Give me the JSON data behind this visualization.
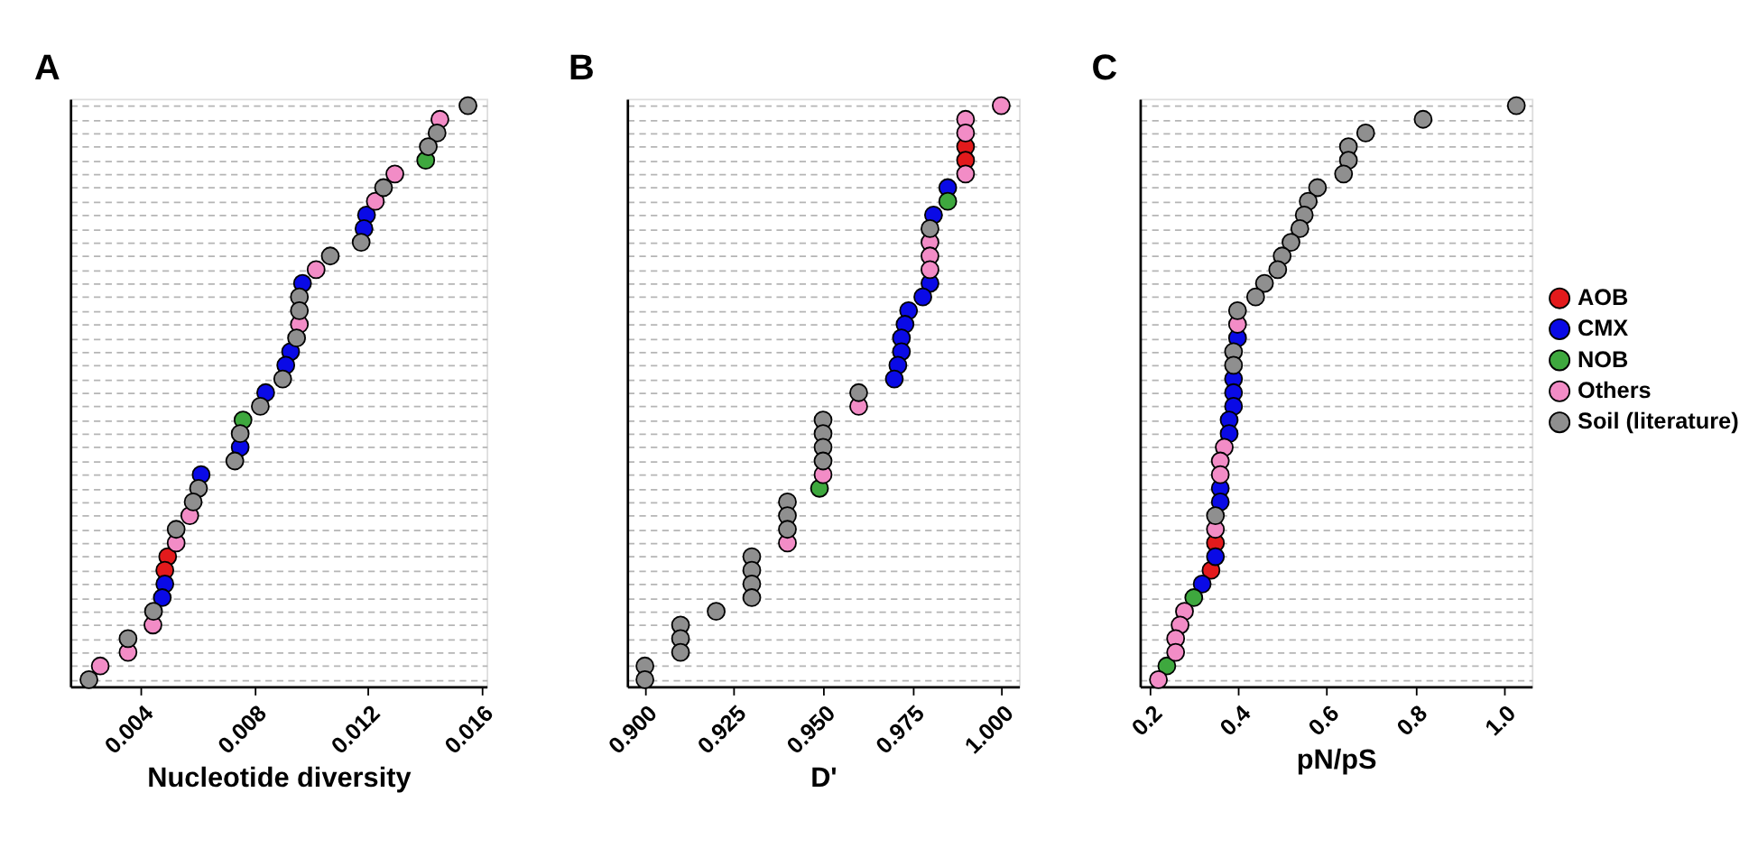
{
  "chart_data": [
    {
      "type": "scatter",
      "orientation": "horizontal",
      "title": "A",
      "xlabel": "Nucleotide diversity",
      "xlim": [
        0.0015,
        0.0162
      ],
      "xticks": [
        0.004,
        0.008,
        0.012,
        0.016
      ],
      "grid": "y",
      "tick_labels": "x",
      "marker": "circle",
      "legend": false,
      "categories": [
        null,
        null,
        null,
        null,
        null,
        null,
        null,
        null,
        null,
        null,
        null,
        null,
        null,
        null,
        null,
        null,
        null,
        null,
        null,
        null,
        null,
        null,
        null,
        null,
        null,
        null,
        null,
        null,
        null,
        null,
        null,
        null,
        null,
        null,
        null,
        null,
        null,
        null,
        null,
        null,
        null,
        null,
        null
      ],
      "series": [
        {
          "color": "#e31a1c",
          "values": [
            null,
            null,
            null,
            null,
            null,
            null,
            null,
            null,
            null,
            null,
            null,
            null,
            null,
            null,
            null,
            null,
            null,
            null,
            null,
            null,
            null,
            null,
            null,
            null,
            null,
            null,
            null,
            null,
            null,
            null,
            null,
            null,
            null,
            0.00494,
            0.00484,
            null,
            null,
            null,
            null,
            null,
            null,
            null,
            null
          ]
        },
        {
          "color": "#0a0ae6",
          "values": [
            null,
            null,
            null,
            null,
            null,
            null,
            null,
            null,
            0.01196,
            0.01187,
            null,
            null,
            null,
            0.0097,
            null,
            null,
            null,
            null,
            0.00928,
            0.00911,
            null,
            0.0084,
            null,
            null,
            null,
            0.0075,
            null,
            0.00612,
            null,
            null,
            null,
            null,
            null,
            null,
            null,
            0.00484,
            0.00475,
            null,
            null,
            null,
            null,
            null,
            null
          ]
        },
        {
          "color": "#3ea83e",
          "values": [
            null,
            null,
            null,
            null,
            0.01405,
            null,
            null,
            null,
            null,
            null,
            null,
            null,
            null,
            null,
            null,
            null,
            null,
            null,
            null,
            null,
            null,
            null,
            null,
            0.0076,
            null,
            null,
            null,
            null,
            null,
            null,
            null,
            null,
            null,
            null,
            null,
            null,
            null,
            null,
            null,
            null,
            null,
            null,
            null
          ]
        },
        {
          "color": "#f28cc6",
          "values": [
            null,
            0.01455,
            null,
            null,
            null,
            0.01296,
            null,
            0.01227,
            null,
            null,
            null,
            null,
            0.01018,
            null,
            null,
            null,
            0.00959,
            null,
            null,
            null,
            null,
            null,
            null,
            null,
            null,
            null,
            null,
            null,
            null,
            null,
            0.00572,
            null,
            0.00524,
            null,
            null,
            null,
            null,
            null,
            0.00442,
            null,
            0.00354,
            0.00256,
            null
          ]
        },
        {
          "color": "#8f8f8f",
          "values": [
            0.01554,
            null,
            0.01445,
            0.01414,
            null,
            null,
            0.01256,
            null,
            null,
            null,
            0.01177,
            0.01068,
            null,
            null,
            0.00959,
            0.00959,
            null,
            0.00949,
            null,
            null,
            0.009,
            null,
            0.00821,
            null,
            0.0075,
            null,
            0.00731,
            null,
            0.00603,
            0.00584,
            null,
            0.00524,
            null,
            null,
            null,
            null,
            null,
            0.00444,
            null,
            0.00354,
            null,
            null,
            0.00216
          ]
        }
      ]
    },
    {
      "type": "scatter",
      "orientation": "horizontal",
      "title": "B",
      "xlabel": "D'",
      "xlim": [
        0.895,
        1.005
      ],
      "xticks": [
        {
          "value": 0.9,
          "label": "0.900"
        },
        0.925,
        {
          "value": 0.95,
          "label": "0.950"
        },
        0.975,
        {
          "value": 1.0,
          "label": "1.000"
        }
      ],
      "grid": "y",
      "tick_labels": "x",
      "marker": "circle",
      "legend": false,
      "categories": [
        null,
        null,
        null,
        null,
        null,
        null,
        null,
        null,
        null,
        null,
        null,
        null,
        null,
        null,
        null,
        null,
        null,
        null,
        null,
        null,
        null,
        null,
        null,
        null,
        null,
        null,
        null,
        null,
        null,
        null,
        null,
        null,
        null,
        null,
        null,
        null,
        null,
        null,
        null,
        null,
        null,
        null,
        null
      ],
      "series": [
        {
          "color": "#e31a1c",
          "values": [
            null,
            null,
            null,
            0.99,
            0.99,
            null,
            null,
            null,
            null,
            null,
            null,
            null,
            null,
            null,
            null,
            null,
            null,
            null,
            null,
            null,
            null,
            null,
            null,
            null,
            null,
            null,
            null,
            null,
            null,
            null,
            null,
            null,
            null,
            null,
            null,
            null,
            null,
            null,
            null,
            null,
            null,
            null,
            null
          ]
        },
        {
          "color": "#0a0ae6",
          "values": [
            null,
            null,
            null,
            null,
            null,
            null,
            0.985,
            null,
            0.981,
            null,
            null,
            null,
            null,
            0.98,
            0.978,
            0.974,
            0.973,
            0.972,
            0.972,
            0.971,
            0.97,
            null,
            null,
            null,
            null,
            null,
            null,
            null,
            null,
            null,
            null,
            null,
            null,
            null,
            null,
            null,
            null,
            null,
            null,
            null,
            null,
            null,
            null
          ]
        },
        {
          "color": "#3ea83e",
          "values": [
            null,
            null,
            null,
            null,
            null,
            null,
            null,
            0.985,
            null,
            null,
            null,
            null,
            null,
            null,
            null,
            null,
            null,
            null,
            null,
            null,
            null,
            null,
            null,
            null,
            null,
            null,
            null,
            null,
            0.949,
            null,
            null,
            null,
            null,
            null,
            null,
            null,
            null,
            null,
            null,
            null,
            null,
            null,
            null
          ]
        },
        {
          "color": "#f28cc6",
          "values": [
            1.0,
            0.99,
            0.99,
            null,
            null,
            0.99,
            null,
            null,
            null,
            null,
            0.98,
            0.98,
            0.98,
            null,
            null,
            null,
            null,
            null,
            null,
            null,
            null,
            null,
            0.96,
            null,
            null,
            null,
            null,
            0.95,
            null,
            null,
            null,
            null,
            0.94,
            null,
            null,
            null,
            null,
            null,
            null,
            null,
            null,
            null,
            null
          ]
        },
        {
          "color": "#8f8f8f",
          "values": [
            null,
            null,
            null,
            null,
            null,
            null,
            null,
            null,
            null,
            0.98,
            null,
            null,
            null,
            null,
            null,
            null,
            null,
            null,
            null,
            null,
            null,
            0.96,
            null,
            0.95,
            0.95,
            0.95,
            0.95,
            null,
            null,
            0.94,
            0.94,
            0.94,
            null,
            0.93,
            0.93,
            0.93,
            0.93,
            0.92,
            0.91,
            0.91,
            0.91,
            0.9,
            0.9
          ]
        }
      ]
    },
    {
      "type": "scatter",
      "orientation": "horizontal",
      "title": "C",
      "xlabel": "pN/pS",
      "xlim": [
        0.177,
        1.064
      ],
      "xticks": [
        0.2,
        0.4,
        0.6,
        0.8,
        {
          "value": 1.0,
          "label": "1.0"
        }
      ],
      "grid": "y",
      "tick_labels": "x",
      "marker": "circle",
      "legend": "right",
      "categories": [
        null,
        null,
        null,
        null,
        null,
        null,
        null,
        null,
        null,
        null,
        null,
        null,
        null,
        null,
        null,
        null,
        null,
        null,
        null,
        null,
        null,
        null,
        null,
        null,
        null,
        null,
        null,
        null,
        null,
        null,
        null,
        null,
        null,
        null,
        null,
        null,
        null,
        null,
        null,
        null,
        null,
        null,
        null
      ],
      "series": [
        {
          "name": "AOB",
          "color": "#e31a1c",
          "values": [
            null,
            null,
            null,
            null,
            null,
            null,
            null,
            null,
            null,
            null,
            null,
            null,
            null,
            null,
            null,
            null,
            null,
            null,
            null,
            null,
            null,
            null,
            null,
            null,
            null,
            null,
            null,
            null,
            null,
            null,
            null,
            null,
            0.348,
            null,
            0.338,
            null,
            null,
            null,
            null,
            null,
            null,
            null,
            null
          ]
        },
        {
          "name": "CMX",
          "color": "#0a0ae6",
          "values": [
            null,
            null,
            null,
            null,
            null,
            null,
            null,
            null,
            null,
            null,
            null,
            null,
            null,
            null,
            null,
            null,
            null,
            0.398,
            null,
            null,
            0.389,
            0.389,
            0.389,
            0.379,
            0.379,
            null,
            null,
            null,
            0.359,
            0.359,
            null,
            null,
            null,
            0.348,
            null,
            0.318,
            null,
            null,
            null,
            null,
            null,
            null,
            null
          ]
        },
        {
          "name": "NOB",
          "color": "#3ea83e",
          "values": [
            null,
            null,
            null,
            null,
            null,
            null,
            null,
            null,
            null,
            null,
            null,
            null,
            null,
            null,
            null,
            null,
            null,
            null,
            null,
            null,
            null,
            null,
            null,
            null,
            null,
            null,
            null,
            null,
            null,
            null,
            null,
            null,
            null,
            null,
            null,
            null,
            0.299,
            null,
            null,
            null,
            null,
            0.238,
            null
          ]
        },
        {
          "name": "Others",
          "color": "#f28cc6",
          "values": [
            null,
            null,
            null,
            null,
            null,
            null,
            null,
            null,
            null,
            null,
            null,
            null,
            null,
            null,
            null,
            null,
            0.398,
            null,
            null,
            null,
            null,
            null,
            null,
            null,
            null,
            0.368,
            0.359,
            0.359,
            null,
            null,
            null,
            0.348,
            null,
            null,
            null,
            null,
            null,
            0.278,
            0.268,
            0.258,
            0.258,
            null,
            0.219
          ]
        },
        {
          "name": "Soil (literature)",
          "color": "#8f8f8f",
          "values": [
            1.029,
            0.818,
            0.688,
            0.649,
            0.649,
            0.638,
            0.579,
            0.558,
            0.549,
            0.539,
            0.519,
            0.499,
            0.489,
            0.459,
            0.439,
            0.398,
            null,
            null,
            0.389,
            0.389,
            null,
            null,
            null,
            null,
            null,
            null,
            null,
            null,
            null,
            null,
            0.348,
            null,
            null,
            null,
            null,
            null,
            null,
            null,
            null,
            null,
            null,
            null,
            null
          ]
        }
      ]
    }
  ]
}
